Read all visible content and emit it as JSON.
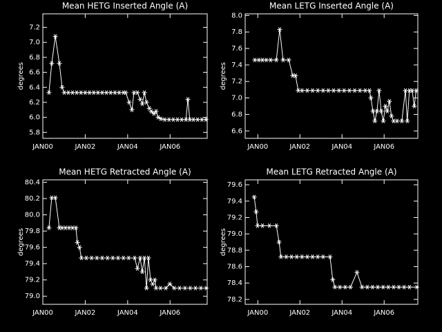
{
  "chart_data": [
    {
      "type": "line",
      "title": "Mean HETG Inserted Angle (A)",
      "ylabel": "degrees",
      "color": "#ffffff",
      "marker": "asterisk",
      "x": [
        2000.29,
        2000.42,
        2000.59,
        2000.78,
        2000.91,
        2001.01,
        2001.2,
        2001.4,
        2001.6,
        2001.8,
        2002.0,
        2002.2,
        2002.4,
        2002.6,
        2002.8,
        2003.0,
        2003.2,
        2003.4,
        2003.6,
        2003.8,
        2003.91,
        2004.07,
        2004.2,
        2004.3,
        2004.46,
        2004.59,
        2004.69,
        2004.79,
        2004.89,
        2005.02,
        2005.11,
        2005.24,
        2005.34,
        2005.44,
        2005.57,
        2005.75,
        2005.95,
        2006.15,
        2006.35,
        2006.55,
        2006.75,
        2006.84,
        2006.93,
        2007.1,
        2007.3,
        2007.5,
        2007.69
      ],
      "values": [
        6.33,
        6.72,
        7.08,
        6.72,
        6.4,
        6.33,
        6.33,
        6.33,
        6.33,
        6.33,
        6.33,
        6.33,
        6.33,
        6.33,
        6.33,
        6.33,
        6.33,
        6.33,
        6.33,
        6.33,
        6.33,
        6.2,
        6.1,
        6.33,
        6.33,
        6.24,
        6.18,
        6.33,
        6.2,
        6.12,
        6.08,
        6.05,
        6.08,
        6.0,
        5.98,
        5.97,
        5.97,
        5.97,
        5.97,
        5.97,
        5.97,
        6.24,
        5.97,
        5.97,
        5.97,
        5.97,
        5.97
      ],
      "xlim": [
        2000,
        2007.75
      ],
      "ylim": [
        5.72,
        7.38
      ],
      "xticks": [
        {
          "value": 2000,
          "label": "JAN00"
        },
        {
          "value": 2002,
          "label": "JAN02"
        },
        {
          "value": 2004,
          "label": "JAN04"
        },
        {
          "value": 2006,
          "label": "JAN06"
        }
      ],
      "yticks": [
        5.8,
        {
          "value": 6,
          "label": "6.0"
        },
        6.2,
        6.4,
        6.6,
        6.8,
        {
          "value": 7,
          "label": "7.0"
        },
        7.2
      ]
    },
    {
      "type": "line",
      "title": "Mean LETG Inserted Angle (A)",
      "ylabel": "degrees",
      "color": "#ffffff",
      "marker": "asterisk",
      "x": [
        1999.86,
        2000.05,
        2000.22,
        2000.4,
        2000.61,
        2000.88,
        2001.04,
        2001.2,
        2001.47,
        2001.66,
        2001.79,
        2001.92,
        2002.1,
        2002.35,
        2002.6,
        2002.85,
        2003.1,
        2003.35,
        2003.6,
        2003.85,
        2004.1,
        2004.35,
        2004.6,
        2004.85,
        2005.1,
        2005.3,
        2005.37,
        2005.47,
        2005.56,
        2005.66,
        2005.76,
        2005.86,
        2005.96,
        2006.06,
        2006.15,
        2006.25,
        2006.35,
        2006.45,
        2006.61,
        2006.84,
        2007.01,
        2007.1,
        2007.2,
        2007.33,
        2007.43,
        2007.52
      ],
      "values": [
        7.46,
        7.46,
        7.46,
        7.46,
        7.46,
        7.46,
        7.83,
        7.46,
        7.46,
        7.27,
        7.27,
        7.09,
        7.09,
        7.09,
        7.09,
        7.09,
        7.09,
        7.09,
        7.09,
        7.09,
        7.09,
        7.09,
        7.09,
        7.09,
        7.09,
        7.09,
        7.0,
        6.84,
        6.72,
        6.84,
        7.09,
        6.84,
        6.72,
        6.9,
        6.84,
        6.96,
        6.78,
        6.72,
        6.72,
        6.72,
        7.09,
        6.72,
        7.09,
        7.09,
        6.9,
        7.09
      ],
      "xlim": [
        1999.4,
        2007.6
      ],
      "ylim": [
        6.51,
        8.02
      ],
      "xticks": [
        {
          "value": 2000,
          "label": "JAN00"
        },
        {
          "value": 2002,
          "label": "JAN02"
        },
        {
          "value": 2004,
          "label": "JAN04"
        },
        {
          "value": 2006,
          "label": "JAN06"
        }
      ],
      "yticks": [
        6.6,
        6.8,
        {
          "value": 7,
          "label": "7.0"
        },
        7.2,
        7.4,
        7.6,
        7.8,
        {
          "value": 8,
          "label": "8.0"
        }
      ]
    },
    {
      "type": "line",
      "title": "Mean HETG Retracted Angle (A)",
      "ylabel": "degrees",
      "color": "#ffffff",
      "marker": "asterisk",
      "x": [
        2000.29,
        2000.42,
        2000.59,
        2000.78,
        2000.91,
        2001.07,
        2001.24,
        2001.4,
        2001.56,
        2001.63,
        2001.73,
        2001.82,
        2002.05,
        2002.3,
        2002.55,
        2002.8,
        2003.05,
        2003.3,
        2003.55,
        2003.8,
        2004.05,
        2004.33,
        2004.46,
        2004.59,
        2004.69,
        2004.79,
        2004.89,
        2004.98,
        2005.08,
        2005.18,
        2005.28,
        2005.34,
        2005.55,
        2005.8,
        2005.99,
        2006.2,
        2006.45,
        2006.7,
        2006.95,
        2007.2,
        2007.45,
        2007.7
      ],
      "values": [
        79.84,
        80.21,
        80.21,
        79.84,
        79.84,
        79.84,
        79.84,
        79.84,
        79.84,
        79.66,
        79.6,
        79.47,
        79.47,
        79.47,
        79.47,
        79.47,
        79.47,
        79.47,
        79.47,
        79.47,
        79.47,
        79.47,
        79.34,
        79.47,
        79.3,
        79.47,
        79.1,
        79.47,
        79.2,
        79.15,
        79.2,
        79.1,
        79.1,
        79.1,
        79.15,
        79.1,
        79.1,
        79.1,
        79.1,
        79.1,
        79.1,
        79.1
      ],
      "xlim": [
        2000,
        2007.75
      ],
      "ylim": [
        78.9,
        80.43
      ],
      "xticks": [
        {
          "value": 2000,
          "label": "JAN00"
        },
        {
          "value": 2002,
          "label": "JAN02"
        },
        {
          "value": 2004,
          "label": "JAN04"
        },
        {
          "value": 2006,
          "label": "JAN06"
        }
      ],
      "yticks": [
        {
          "value": 79,
          "label": "79.0"
        },
        79.2,
        79.4,
        79.6,
        79.8,
        {
          "value": 80,
          "label": "80.0"
        },
        80.2,
        80.4
      ]
    },
    {
      "type": "line",
      "title": "Mean LETG Retracted Angle (A)",
      "ylabel": "degrees",
      "color": "#ffffff",
      "marker": "asterisk",
      "x": [
        1999.83,
        1999.92,
        1999.99,
        2000.22,
        2000.55,
        2000.88,
        2001.01,
        2001.1,
        2001.35,
        2001.6,
        2001.85,
        2002.1,
        2002.35,
        2002.6,
        2002.85,
        2003.1,
        2003.43,
        2003.56,
        2003.66,
        2003.9,
        2004.15,
        2004.4,
        2004.71,
        2004.95,
        2005.2,
        2005.45,
        2005.7,
        2005.95,
        2006.2,
        2006.45,
        2006.7,
        2006.95,
        2007.2,
        2007.55
      ],
      "values": [
        79.45,
        79.27,
        79.1,
        79.1,
        79.1,
        79.1,
        78.9,
        78.72,
        78.72,
        78.72,
        78.72,
        78.72,
        78.72,
        78.72,
        78.72,
        78.72,
        78.72,
        78.44,
        78.35,
        78.35,
        78.35,
        78.35,
        78.53,
        78.35,
        78.35,
        78.35,
        78.35,
        78.35,
        78.35,
        78.35,
        78.35,
        78.35,
        78.35,
        78.35
      ],
      "xlim": [
        1999.4,
        2007.6
      ],
      "ylim": [
        78.14,
        79.66
      ],
      "xticks": [
        {
          "value": 2000,
          "label": "JAN00"
        },
        {
          "value": 2002,
          "label": "JAN02"
        },
        {
          "value": 2004,
          "label": "JAN04"
        },
        {
          "value": 2006,
          "label": "JAN06"
        }
      ],
      "yticks": [
        78.2,
        78.4,
        78.6,
        78.8,
        {
          "value": 79,
          "label": "79.0"
        },
        79.2,
        79.4,
        79.6
      ]
    }
  ]
}
